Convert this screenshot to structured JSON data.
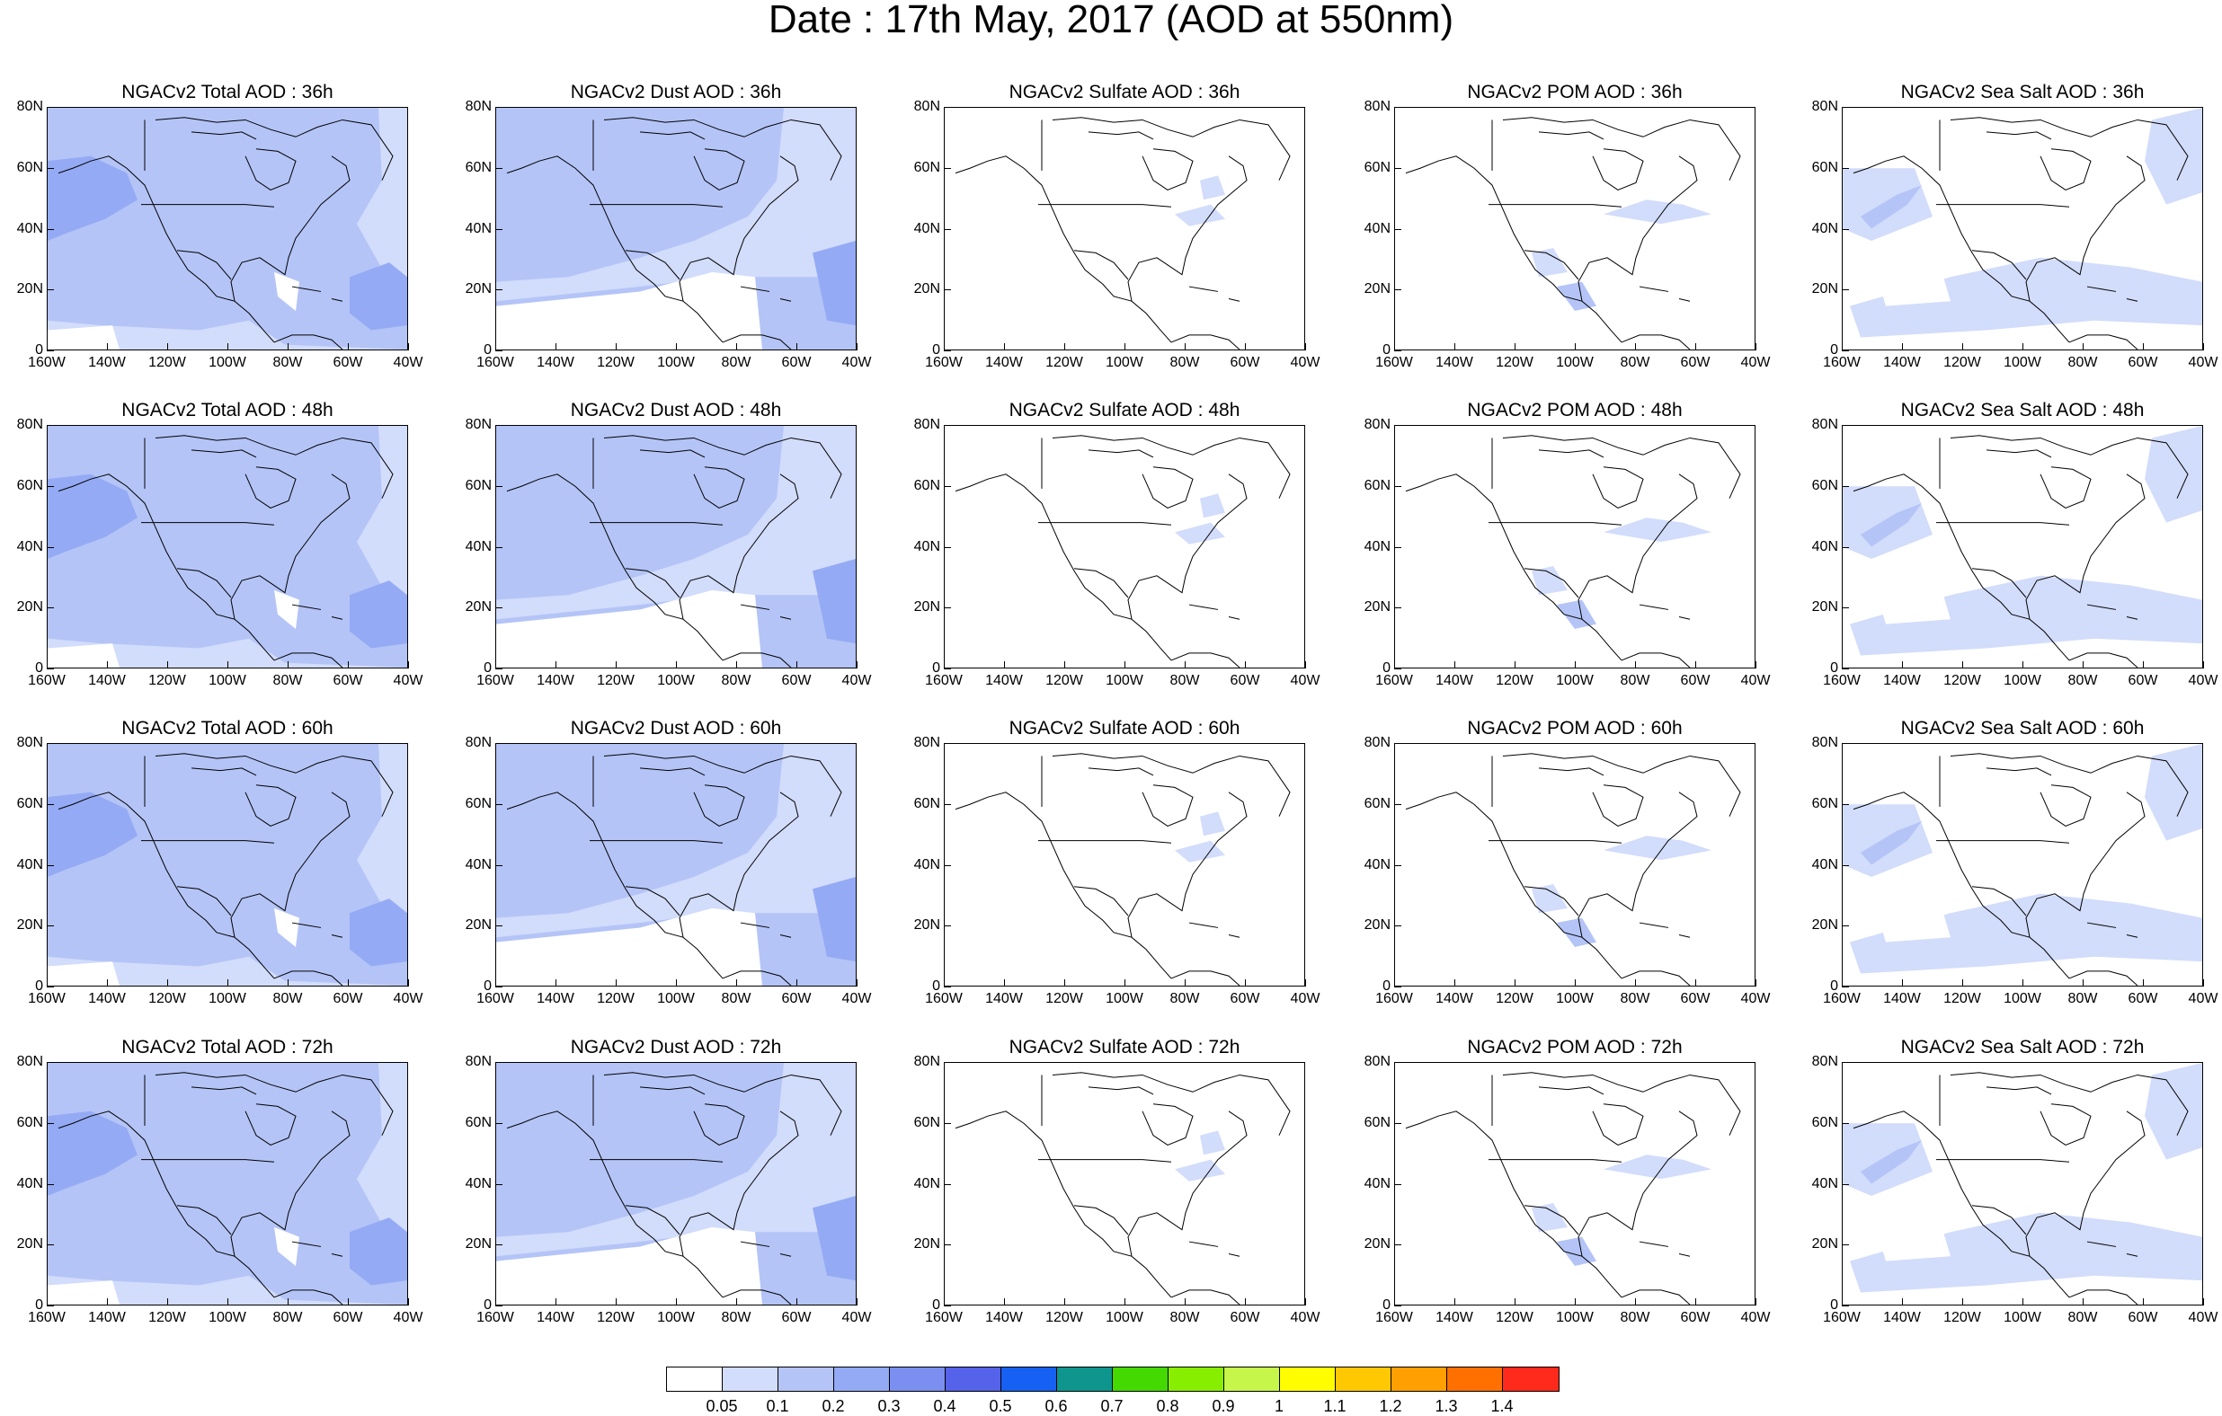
{
  "title": "Date : 17th May, 2017 (AOD at 550nm)",
  "lat_labels": [
    "80N",
    "60N",
    "40N",
    "20N",
    "0"
  ],
  "lon_labels": [
    "160W",
    "140W",
    "120W",
    "100W",
    "80W",
    "60W",
    "40W"
  ],
  "colors": {
    "level_0": "#ffffff",
    "level_1": "#d2dcfb",
    "level_2": "#b4c4f7",
    "level_3": "#94aaf4",
    "level_4": "#7b8ff0",
    "level_5": "#5562ea",
    "coast": "#000000"
  },
  "panels": [
    {
      "title": "NGACv2 Total AOD : 36h",
      "fill": "level_2",
      "pattern": "total"
    },
    {
      "title": "NGACv2 Dust AOD : 36h",
      "fill": "level_2",
      "pattern": "dust"
    },
    {
      "title": "NGACv2 Sulfate AOD : 36h",
      "fill": "level_0",
      "pattern": "sulfate"
    },
    {
      "title": "NGACv2 POM AOD : 36h",
      "fill": "level_0",
      "pattern": "pom"
    },
    {
      "title": "NGACv2 Sea Salt AOD : 36h",
      "fill": "level_0",
      "pattern": "seasalt"
    },
    {
      "title": "NGACv2 Total AOD : 48h",
      "fill": "level_2",
      "pattern": "total"
    },
    {
      "title": "NGACv2 Dust AOD : 48h",
      "fill": "level_2",
      "pattern": "dust"
    },
    {
      "title": "NGACv2 Sulfate AOD : 48h",
      "fill": "level_0",
      "pattern": "sulfate"
    },
    {
      "title": "NGACv2 POM AOD : 48h",
      "fill": "level_0",
      "pattern": "pom"
    },
    {
      "title": "NGACv2 Sea Salt AOD : 48h",
      "fill": "level_0",
      "pattern": "seasalt"
    },
    {
      "title": "NGACv2 Total AOD : 60h",
      "fill": "level_2",
      "pattern": "total"
    },
    {
      "title": "NGACv2 Dust AOD : 60h",
      "fill": "level_2",
      "pattern": "dust"
    },
    {
      "title": "NGACv2 Sulfate AOD : 60h",
      "fill": "level_0",
      "pattern": "sulfate"
    },
    {
      "title": "NGACv2 POM AOD : 60h",
      "fill": "level_0",
      "pattern": "pom"
    },
    {
      "title": "NGACv2 Sea Salt AOD : 60h",
      "fill": "level_0",
      "pattern": "seasalt"
    },
    {
      "title": "NGACv2 Total AOD : 72h",
      "fill": "level_2",
      "pattern": "total"
    },
    {
      "title": "NGACv2 Dust AOD : 72h",
      "fill": "level_2",
      "pattern": "dust"
    },
    {
      "title": "NGACv2 Sulfate AOD : 72h",
      "fill": "level_0",
      "pattern": "sulfate"
    },
    {
      "title": "NGACv2 POM AOD : 72h",
      "fill": "level_0",
      "pattern": "pom"
    },
    {
      "title": "NGACv2 Sea Salt  AOD : 72h",
      "fill": "level_0",
      "pattern": "seasalt"
    }
  ],
  "colorbar": {
    "colors": [
      "#ffffff",
      "#d2dcfb",
      "#b4c4f7",
      "#94aaf4",
      "#7b8ff0",
      "#5562ea",
      "#1661f4",
      "#0e968e",
      "#44d900",
      "#87ee00",
      "#c7f64a",
      "#fffd00",
      "#ffc800",
      "#ffa000",
      "#ff7000",
      "#ff2a1b"
    ],
    "labels": [
      "0.05",
      "0.1",
      "0.2",
      "0.3",
      "0.4",
      "0.5",
      "0.6",
      "0.7",
      "0.8",
      "0.9",
      "1",
      "1.1",
      "1.2",
      "1.3",
      "1.4"
    ]
  }
}
